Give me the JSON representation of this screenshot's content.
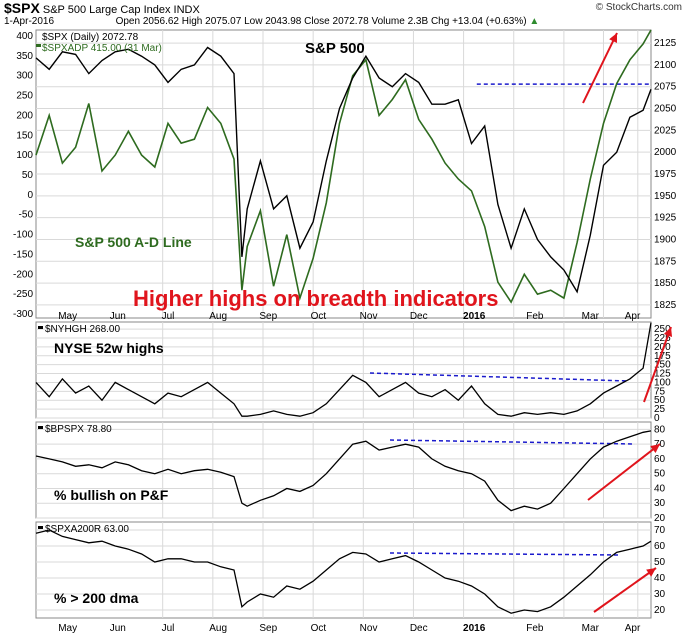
{
  "header": {
    "symbol": "$SPX",
    "name": "S&P 500 Large Cap Index INDX",
    "watermark": "© StockCharts.com",
    "date": "1-Apr-2016",
    "open_label": "Open",
    "open": "2056.62",
    "high_label": "High",
    "high": "2075.07",
    "low_label": "Low",
    "low": "2043.98",
    "close_label": "Close",
    "close": "2072.78",
    "volume_label": "Volume",
    "volume": "2.3B",
    "chg_label": "Chg",
    "chg": "+13.04 (+0.63%)"
  },
  "colors": {
    "price": "#000000",
    "ad_line": "#2e6b1f",
    "dashed": "#1a1acc",
    "arrow": "#e0141c",
    "grid": "#d9d9d9",
    "annotation": "#e0141c"
  },
  "chart_data": [
    {
      "type": "line",
      "panel": "main",
      "title": "S&P 500",
      "annotation": "Higher highs on breadth indicators",
      "x_labels": [
        "May",
        "Jun",
        "Jul",
        "Aug",
        "Sep",
        "Oct",
        "Nov",
        "Dec",
        "2016",
        "Feb",
        "Mar",
        "Apr"
      ],
      "series": [
        {
          "name": "$SPX (Daily) 2072.78",
          "axis": "right",
          "ylim": [
            1810,
            2140
          ],
          "ticks": [
            1825,
            1850,
            1875,
            1900,
            1925,
            1950,
            1975,
            2000,
            2025,
            2050,
            2075,
            2100,
            2125
          ],
          "x": [
            0,
            5,
            10,
            15,
            20,
            25,
            30,
            35,
            40,
            45,
            50,
            55,
            60,
            65,
            70,
            75,
            78,
            80,
            85,
            90,
            95,
            100,
            105,
            110,
            115,
            120,
            125,
            130,
            135,
            140,
            145,
            150,
            155,
            160,
            165,
            170,
            175,
            180,
            185,
            190,
            195,
            200,
            205,
            210,
            215,
            220,
            225,
            230,
            233
          ],
          "values": [
            2108,
            2095,
            2115,
            2112,
            2090,
            2105,
            2115,
            2118,
            2110,
            2100,
            2080,
            2095,
            2100,
            2120,
            2110,
            2090,
            1880,
            1935,
            1990,
            1935,
            1950,
            1890,
            1920,
            1990,
            2050,
            2085,
            2110,
            2085,
            2075,
            2090,
            2080,
            2055,
            2055,
            2060,
            2010,
            2030,
            1940,
            1890,
            1935,
            1900,
            1880,
            1865,
            1840,
            1905,
            1985,
            2000,
            2040,
            2048,
            2072
          ]
        },
        {
          "name": "$SPXADP 415.00 (31 Mar)",
          "label": "S&P 500 A-D Line",
          "axis": "left",
          "ylim": [
            -310,
            415
          ],
          "ticks": [
            -300,
            -250,
            -200,
            -150,
            -100,
            -50,
            0,
            50,
            100,
            150,
            200,
            250,
            300,
            350,
            400
          ],
          "x": [
            0,
            5,
            10,
            15,
            20,
            25,
            30,
            35,
            40,
            45,
            50,
            55,
            60,
            65,
            70,
            75,
            78,
            80,
            85,
            90,
            95,
            100,
            105,
            110,
            115,
            120,
            125,
            130,
            135,
            140,
            145,
            150,
            155,
            160,
            165,
            170,
            175,
            180,
            185,
            190,
            195,
            200,
            205,
            210,
            215,
            220,
            225,
            230,
            233
          ],
          "values": [
            100,
            200,
            80,
            120,
            230,
            60,
            100,
            160,
            100,
            70,
            180,
            130,
            140,
            220,
            180,
            90,
            -240,
            -130,
            -40,
            -230,
            -100,
            -260,
            -160,
            -20,
            180,
            300,
            340,
            200,
            240,
            290,
            190,
            140,
            80,
            40,
            10,
            -80,
            -220,
            -270,
            -200,
            -250,
            -240,
            -260,
            -120,
            40,
            180,
            280,
            340,
            380,
            415
          ]
        }
      ],
      "dashed_level": 2078
    },
    {
      "type": "line",
      "panel": "nyhgh",
      "title": "$NYHGH 268.00",
      "label": "NYSE 52w highs",
      "ylim": [
        0,
        270
      ],
      "ticks": [
        0,
        25,
        50,
        75,
        100,
        125,
        150,
        175,
        200,
        225,
        250
      ],
      "x": [
        0,
        5,
        10,
        15,
        20,
        25,
        30,
        35,
        40,
        45,
        50,
        55,
        60,
        65,
        70,
        75,
        78,
        80,
        85,
        90,
        95,
        100,
        105,
        110,
        115,
        120,
        125,
        130,
        135,
        140,
        145,
        150,
        155,
        160,
        165,
        170,
        175,
        180,
        185,
        190,
        195,
        200,
        205,
        210,
        215,
        220,
        225,
        230,
        233
      ],
      "values": [
        100,
        60,
        110,
        70,
        90,
        50,
        100,
        80,
        60,
        40,
        70,
        60,
        80,
        100,
        70,
        40,
        5,
        5,
        10,
        20,
        10,
        5,
        15,
        40,
        80,
        120,
        100,
        60,
        80,
        100,
        70,
        60,
        80,
        50,
        90,
        40,
        10,
        5,
        15,
        10,
        15,
        10,
        20,
        40,
        70,
        90,
        110,
        140,
        268
      ]
    },
    {
      "type": "line",
      "panel": "bpspx",
      "title": "$BPSPX 78.80",
      "label": "% bullish on P&F",
      "ylim": [
        20,
        85
      ],
      "ticks": [
        20,
        30,
        40,
        50,
        60,
        70,
        80
      ],
      "x": [
        0,
        5,
        10,
        15,
        20,
        25,
        30,
        35,
        40,
        45,
        50,
        55,
        60,
        65,
        70,
        75,
        78,
        80,
        85,
        90,
        95,
        100,
        105,
        110,
        115,
        120,
        125,
        130,
        135,
        140,
        145,
        150,
        155,
        160,
        165,
        170,
        175,
        180,
        185,
        190,
        195,
        200,
        205,
        210,
        215,
        220,
        225,
        230,
        233
      ],
      "values": [
        62,
        60,
        58,
        55,
        56,
        54,
        58,
        56,
        52,
        50,
        53,
        50,
        52,
        53,
        51,
        48,
        30,
        28,
        32,
        35,
        40,
        38,
        42,
        50,
        60,
        70,
        72,
        66,
        68,
        70,
        68,
        60,
        55,
        52,
        50,
        45,
        32,
        25,
        28,
        26,
        30,
        40,
        50,
        60,
        68,
        72,
        75,
        78,
        79
      ]
    },
    {
      "type": "line",
      "panel": "spxa200r",
      "title": "$SPXA200R 63.00",
      "label": "% > 200 dma",
      "x_labels": [
        "May",
        "Jun",
        "Jul",
        "Aug",
        "Sep",
        "Oct",
        "Nov",
        "Dec",
        "2016",
        "Feb",
        "Mar",
        "Apr"
      ],
      "ylim": [
        15,
        75
      ],
      "ticks": [
        20,
        30,
        40,
        50,
        60,
        70
      ],
      "x": [
        0,
        5,
        10,
        15,
        20,
        25,
        30,
        35,
        40,
        45,
        50,
        55,
        60,
        65,
        70,
        75,
        78,
        80,
        85,
        90,
        95,
        100,
        105,
        110,
        115,
        120,
        125,
        130,
        135,
        140,
        145,
        150,
        155,
        160,
        165,
        170,
        175,
        180,
        185,
        190,
        195,
        200,
        205,
        210,
        215,
        220,
        225,
        230,
        233
      ],
      "values": [
        68,
        70,
        66,
        64,
        62,
        63,
        60,
        58,
        55,
        50,
        52,
        52,
        50,
        50,
        47,
        45,
        22,
        25,
        30,
        28,
        35,
        33,
        38,
        45,
        52,
        56,
        55,
        50,
        52,
        54,
        50,
        45,
        40,
        38,
        35,
        30,
        22,
        18,
        20,
        19,
        22,
        28,
        35,
        42,
        50,
        56,
        58,
        60,
        63
      ]
    }
  ]
}
